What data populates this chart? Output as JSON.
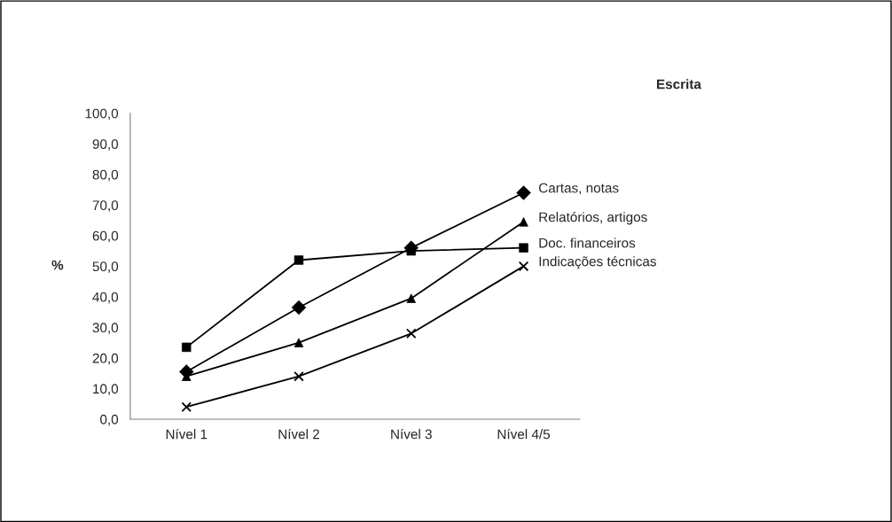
{
  "chart_data": {
    "type": "line",
    "title": "Escrita",
    "ylabel": "%",
    "categories": [
      "Nível 1",
      "Nível 2",
      "Nível 3",
      "Nível 4/5"
    ],
    "series": [
      {
        "name": "Cartas, notas",
        "color": "#000000",
        "marker": "diamond",
        "values": [
          15.5,
          36.5,
          56,
          74
        ]
      },
      {
        "name": "Relatórios, artigos",
        "color": "#000000",
        "marker": "triangle",
        "values": [
          14,
          25,
          39.5,
          64.5
        ]
      },
      {
        "name": "Doc. financeiros",
        "color": "#000000",
        "marker": "square",
        "values": [
          23.5,
          52,
          55,
          56
        ]
      },
      {
        "name": "Indicações técnicas",
        "color": "#000000",
        "marker": "cross",
        "values": [
          4,
          14,
          28,
          50
        ]
      }
    ],
    "ylim": [
      0,
      100
    ],
    "yticks": [
      {
        "value": 0,
        "label": "0,0"
      },
      {
        "value": 10,
        "label": "10,0"
      },
      {
        "value": 20,
        "label": "20,0"
      },
      {
        "value": 30,
        "label": "30,0"
      },
      {
        "value": 40,
        "label": "40,0"
      },
      {
        "value": 50,
        "label": "50,0"
      },
      {
        "value": 60,
        "label": "60,0"
      },
      {
        "value": 70,
        "label": "70,0"
      },
      {
        "value": 80,
        "label": "80,0"
      },
      {
        "value": 90,
        "label": "90,0"
      },
      {
        "value": 100,
        "label": "100,0"
      }
    ],
    "grid": false,
    "legend": false,
    "line_style": "solid"
  }
}
